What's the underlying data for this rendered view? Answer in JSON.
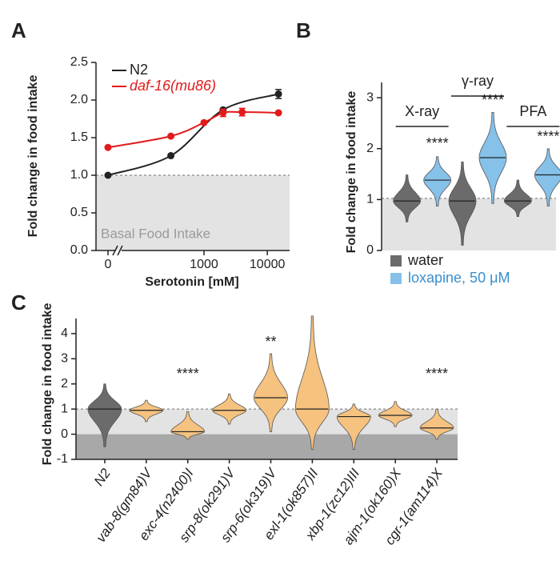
{
  "chart_data": [
    {
      "type": "line",
      "panel_label": "A",
      "xlabel": "Serotonin [mM]",
      "ylabel": "Fold change in food intake",
      "xscale": "log",
      "xlim": [
        0,
        20000
      ],
      "xticks": [
        0,
        1000,
        10000
      ],
      "ylim": [
        0,
        2.5
      ],
      "yticks": [
        {
          "value": 0,
          "label": "0.0"
        },
        0.5,
        {
          "value": 1,
          "label": "1.0"
        },
        1.5,
        {
          "value": 2,
          "label": "2.0"
        },
        2.5
      ],
      "reference_line": 1,
      "annotation": "Basal Food Intake",
      "series": [
        {
          "name": "N2",
          "color": "#222222",
          "x": [
            0,
            300,
            2000,
            15000
          ],
          "values": [
            1.0,
            1.26,
            1.87,
            2.08
          ],
          "errors": [
            null,
            null,
            null,
            0.06
          ]
        },
        {
          "name": "daf-16(mu86)",
          "color": "#e31a1c",
          "x": [
            0,
            300,
            1000,
            2000,
            4000,
            15000
          ],
          "values": [
            1.37,
            1.52,
            1.7,
            1.83,
            1.84,
            1.83
          ],
          "errors": [
            null,
            null,
            null,
            0.05,
            0.05,
            null
          ]
        }
      ]
    },
    {
      "type": "violin",
      "panel_label": "B",
      "ylabel": "Fold change in food intake",
      "ylim": [
        0,
        3.3
      ],
      "yticks": [
        0,
        1,
        2,
        3
      ],
      "reference_line": 1,
      "groups": [
        "X-ray",
        "γ-ray",
        "PFA"
      ],
      "significance": [
        "****",
        "****",
        "****"
      ],
      "series": [
        {
          "name": "water",
          "color": "#6b6b6b",
          "values": [
            0.95,
            0.95,
            0.95
          ],
          "min": [
            0.55,
            0.1,
            0.65
          ],
          "max": [
            1.45,
            1.7,
            1.35
          ]
        },
        {
          "name": "loxapine, 50 μM",
          "color": "#85c1e9",
          "values": [
            1.35,
            1.78,
            1.45
          ],
          "min": [
            0.85,
            0.9,
            0.85
          ],
          "max": [
            1.8,
            2.65,
            1.95
          ]
        }
      ]
    },
    {
      "type": "violin",
      "panel_label": "C",
      "ylabel": "Fold change in food intake",
      "ylim": [
        -1,
        4.6
      ],
      "yticks": [
        -1,
        0,
        1,
        2,
        3,
        4
      ],
      "reference_line": 1,
      "categories": [
        "N2",
        "vab-8(gm84)V",
        "exc-4(n2400)I",
        "srp-8(ok291)V",
        "srp-6(ok319)V",
        "exl-1(ok857)II",
        "xbp-1(zc12)III",
        "ajm-1(ok160)X",
        "cgr-1(am114)X"
      ],
      "values": [
        1.0,
        0.95,
        0.1,
        0.95,
        1.45,
        1.0,
        0.7,
        0.75,
        0.25
      ],
      "min": [
        -0.5,
        0.5,
        -0.2,
        0.4,
        0.1,
        -0.6,
        -0.6,
        0.3,
        -0.2
      ],
      "max": [
        2.0,
        1.35,
        0.9,
        1.6,
        3.2,
        4.7,
        1.2,
        1.3,
        1.0
      ],
      "colors": [
        "#6b6b6b",
        "#f5c27f",
        "#f5c27f",
        "#f5c27f",
        "#f5c27f",
        "#f5c27f",
        "#f5c27f",
        "#f5c27f",
        "#f5c27f"
      ],
      "significance": [
        null,
        null,
        "****",
        null,
        "**",
        null,
        null,
        null,
        "****"
      ]
    }
  ]
}
